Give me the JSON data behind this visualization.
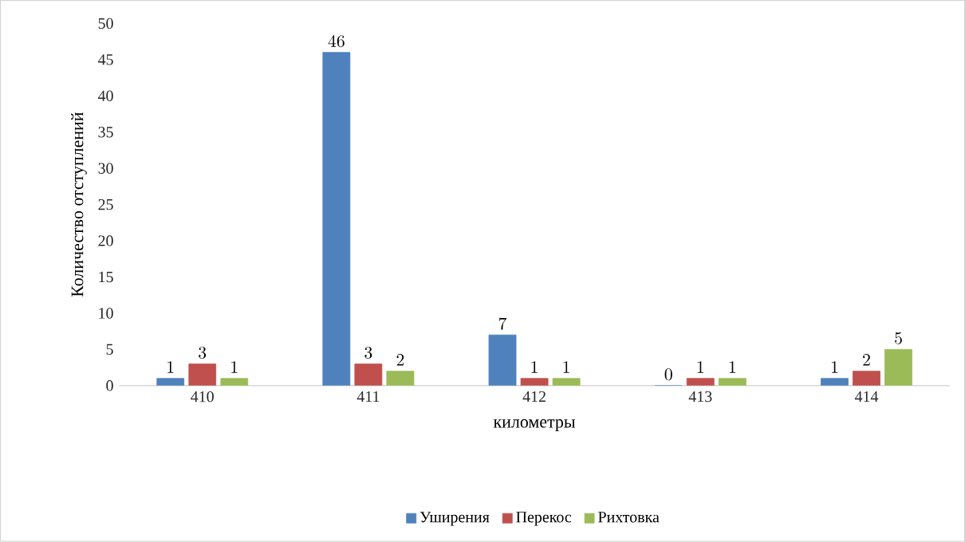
{
  "chart_data": {
    "type": "bar",
    "xlabel": "километры",
    "ylabel": "Количество отступлений",
    "categories": [
      "410",
      "411",
      "412",
      "413",
      "414"
    ],
    "series": [
      {
        "name": "Уширения",
        "color": "#4f81bd",
        "values": [
          1,
          46,
          7,
          0,
          1
        ]
      },
      {
        "name": "Перекос",
        "color": "#c0504d",
        "values": [
          3,
          3,
          1,
          1,
          2
        ]
      },
      {
        "name": "Рихтовка",
        "color": "#9bbb59",
        "values": [
          1,
          2,
          1,
          1,
          5
        ]
      }
    ],
    "ylim": [
      0,
      50
    ],
    "yticks": [
      0,
      5,
      10,
      15,
      20,
      25,
      30,
      35,
      40,
      45,
      50
    ],
    "data_labels": true,
    "legend": "bottom",
    "grid": false
  }
}
